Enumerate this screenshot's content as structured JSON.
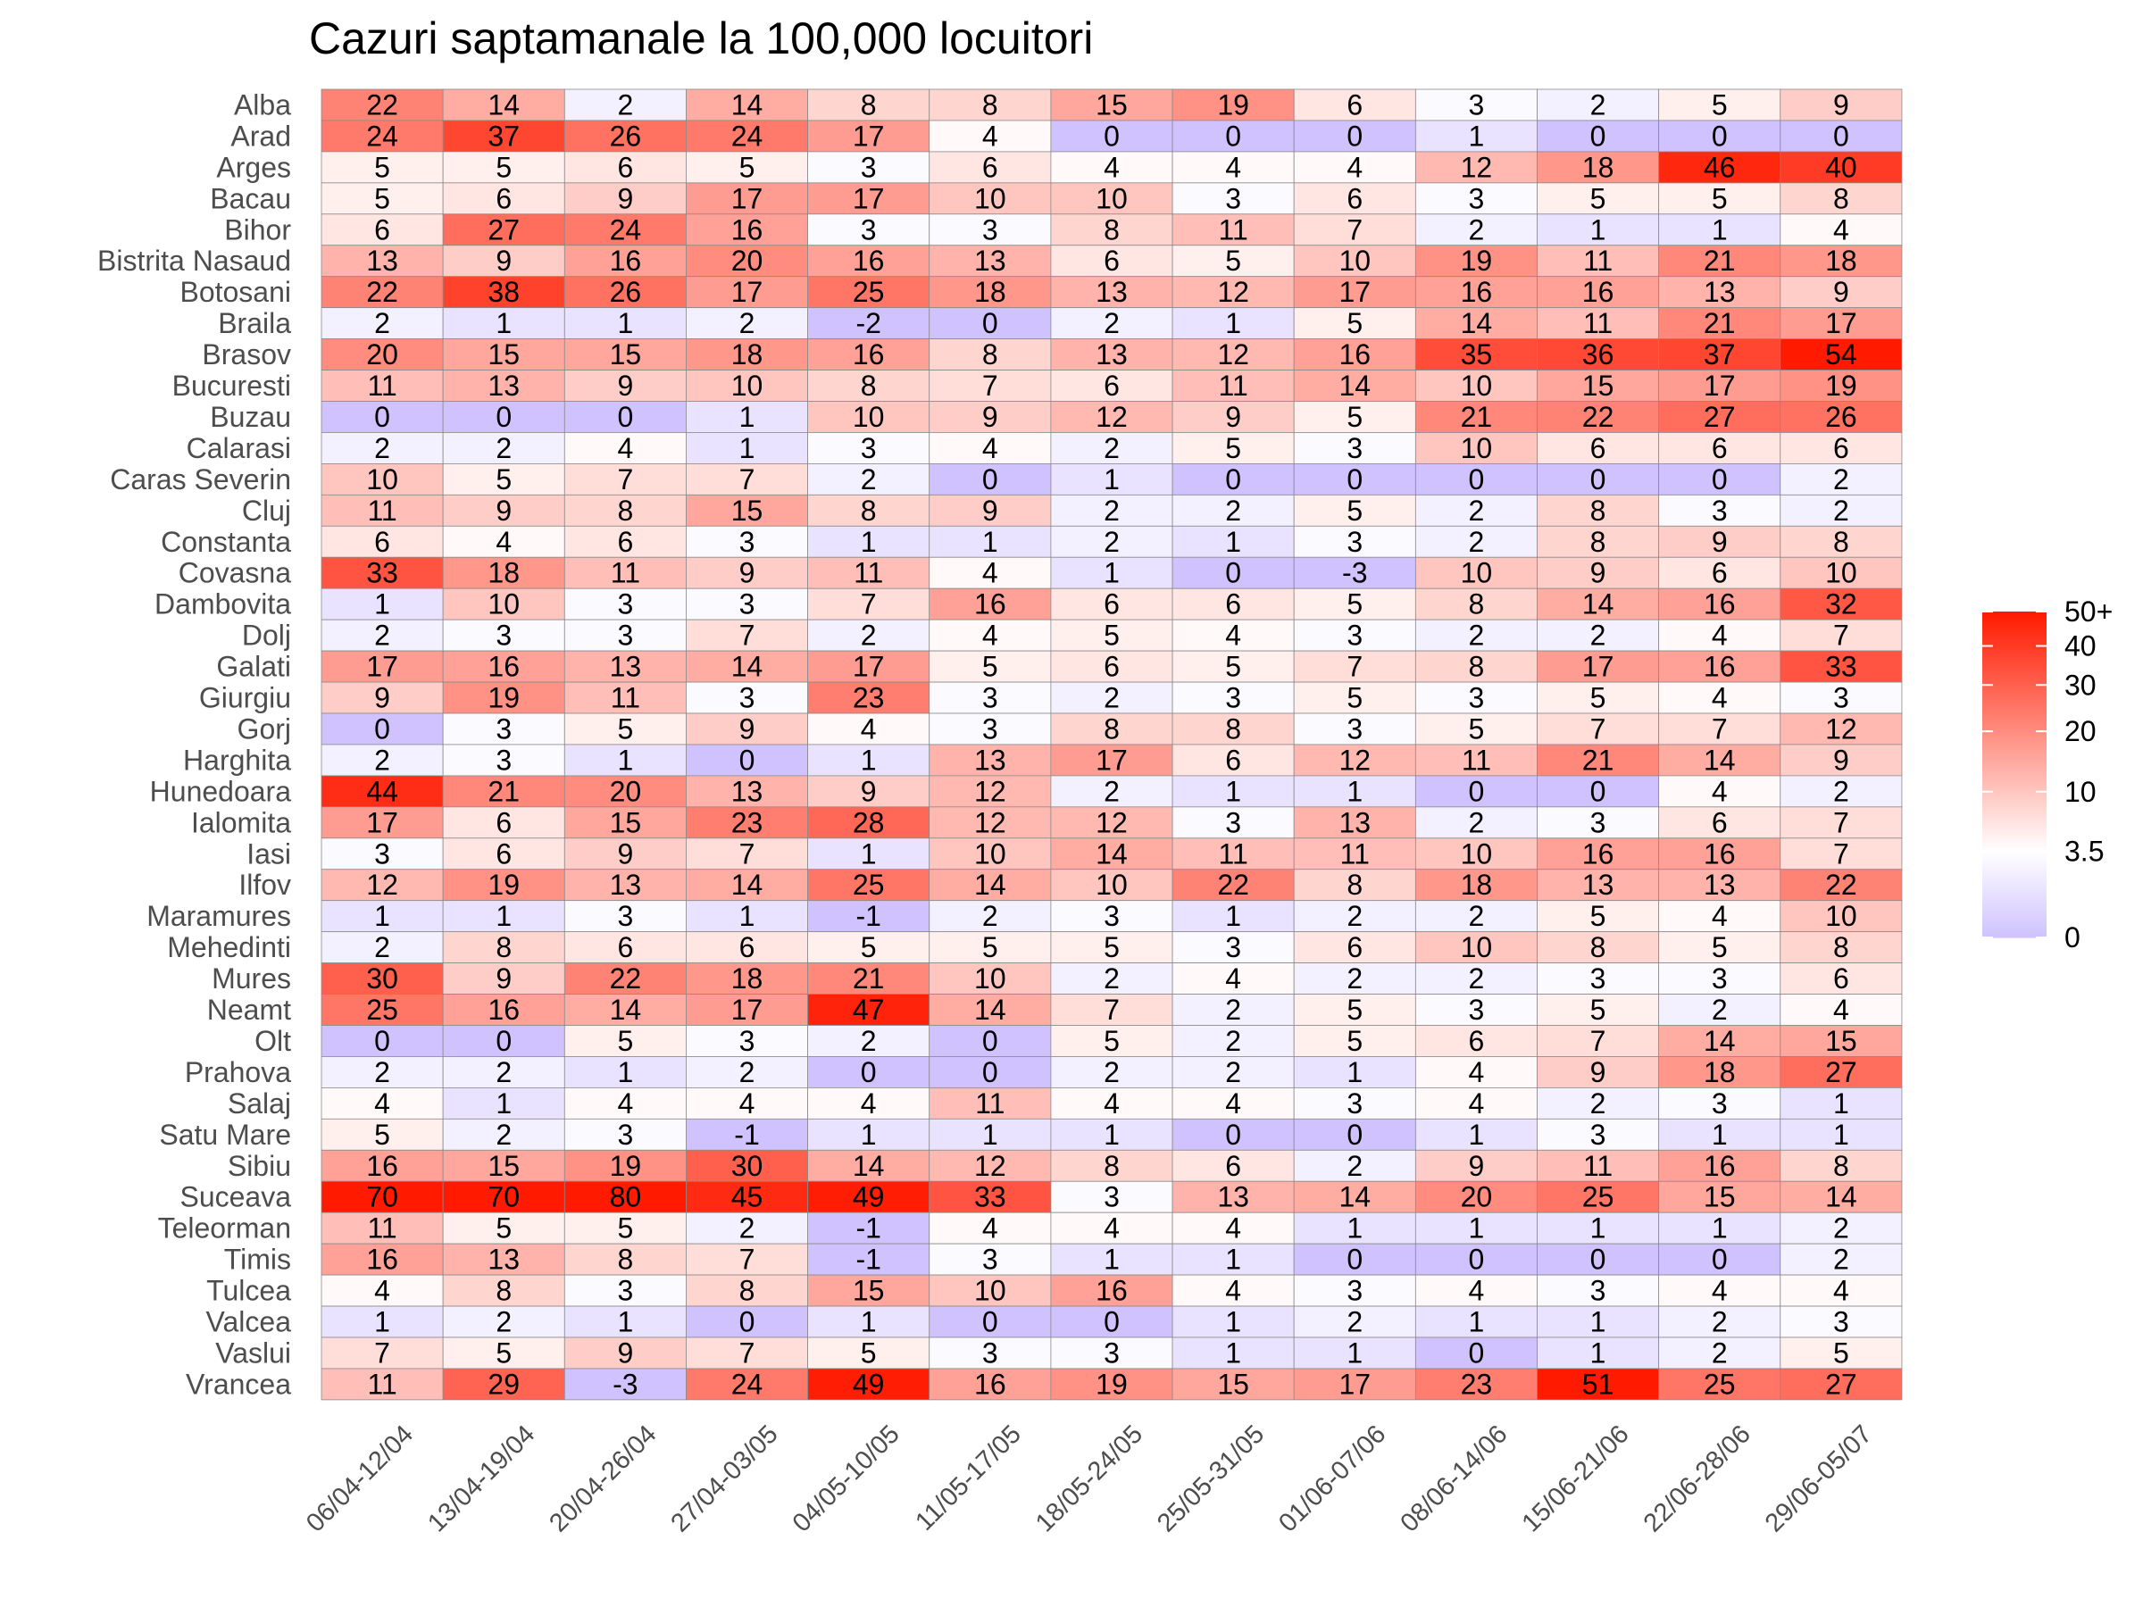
{
  "chart_data": {
    "type": "heatmap",
    "title": "Cazuri saptamanale la 100,000 locuitori",
    "xlabel": "",
    "ylabel": "",
    "x": [
      "06/04-12/04",
      "13/04-19/04",
      "20/04-26/04",
      "27/04-03/05",
      "04/05-10/05",
      "11/05-17/05",
      "18/05-24/05",
      "25/05-31/05",
      "01/06-07/06",
      "08/06-14/06",
      "15/06-21/06",
      "22/06-28/06",
      "29/06-05/07"
    ],
    "y": [
      "Alba",
      "Arad",
      "Arges",
      "Bacau",
      "Bihor",
      "Bistrita Nasaud",
      "Botosani",
      "Braila",
      "Brasov",
      "Bucuresti",
      "Buzau",
      "Calarasi",
      "Caras Severin",
      "Cluj",
      "Constanta",
      "Covasna",
      "Dambovita",
      "Dolj",
      "Galati",
      "Giurgiu",
      "Gorj",
      "Harghita",
      "Hunedoara",
      "Ialomita",
      "Iasi",
      "Ilfov",
      "Maramures",
      "Mehedinti",
      "Mures",
      "Neamt",
      "Olt",
      "Prahova",
      "Salaj",
      "Satu Mare",
      "Sibiu",
      "Suceava",
      "Teleorman",
      "Timis",
      "Tulcea",
      "Valcea",
      "Vaslui",
      "Vrancea"
    ],
    "values": [
      [
        22,
        14,
        2,
        14,
        8,
        8,
        15,
        19,
        6,
        3,
        2,
        5,
        9
      ],
      [
        24,
        37,
        26,
        24,
        17,
        4,
        0,
        0,
        0,
        1,
        0,
        0,
        0
      ],
      [
        5,
        5,
        6,
        5,
        3,
        6,
        4,
        4,
        4,
        12,
        18,
        46,
        40
      ],
      [
        5,
        6,
        9,
        17,
        17,
        10,
        10,
        3,
        6,
        3,
        5,
        5,
        8
      ],
      [
        6,
        27,
        24,
        16,
        3,
        3,
        8,
        11,
        7,
        2,
        1,
        1,
        4
      ],
      [
        13,
        9,
        16,
        20,
        16,
        13,
        6,
        5,
        10,
        19,
        11,
        21,
        18
      ],
      [
        22,
        38,
        26,
        17,
        25,
        18,
        13,
        12,
        17,
        16,
        16,
        13,
        9
      ],
      [
        2,
        1,
        1,
        2,
        -2,
        0,
        2,
        1,
        5,
        14,
        11,
        21,
        17
      ],
      [
        20,
        15,
        15,
        18,
        16,
        8,
        13,
        12,
        16,
        35,
        36,
        37,
        54
      ],
      [
        11,
        13,
        9,
        10,
        8,
        7,
        6,
        11,
        14,
        10,
        15,
        17,
        19
      ],
      [
        0,
        0,
        0,
        1,
        10,
        9,
        12,
        9,
        5,
        21,
        22,
        27,
        26
      ],
      [
        2,
        2,
        4,
        1,
        3,
        4,
        2,
        5,
        3,
        10,
        6,
        6,
        6
      ],
      [
        10,
        5,
        7,
        7,
        2,
        0,
        1,
        0,
        0,
        0,
        0,
        0,
        2
      ],
      [
        11,
        9,
        8,
        15,
        8,
        9,
        2,
        2,
        5,
        2,
        8,
        3,
        2
      ],
      [
        6,
        4,
        6,
        3,
        1,
        1,
        2,
        1,
        3,
        2,
        8,
        9,
        8
      ],
      [
        33,
        18,
        11,
        9,
        11,
        4,
        1,
        0,
        -3,
        10,
        9,
        6,
        10
      ],
      [
        1,
        10,
        3,
        3,
        7,
        16,
        6,
        6,
        5,
        8,
        14,
        16,
        32
      ],
      [
        2,
        3,
        3,
        7,
        2,
        4,
        5,
        4,
        3,
        2,
        2,
        4,
        7
      ],
      [
        17,
        16,
        13,
        14,
        17,
        5,
        6,
        5,
        7,
        8,
        17,
        16,
        33
      ],
      [
        9,
        19,
        11,
        3,
        23,
        3,
        2,
        3,
        5,
        3,
        5,
        4,
        3
      ],
      [
        0,
        3,
        5,
        9,
        4,
        3,
        8,
        8,
        3,
        5,
        7,
        7,
        12
      ],
      [
        2,
        3,
        1,
        0,
        1,
        13,
        17,
        6,
        12,
        11,
        21,
        14,
        9
      ],
      [
        44,
        21,
        20,
        13,
        9,
        12,
        2,
        1,
        1,
        0,
        0,
        4,
        2
      ],
      [
        17,
        6,
        15,
        23,
        28,
        12,
        12,
        3,
        13,
        2,
        3,
        6,
        7
      ],
      [
        3,
        6,
        9,
        7,
        1,
        10,
        14,
        11,
        11,
        10,
        16,
        16,
        7
      ],
      [
        12,
        19,
        13,
        14,
        25,
        14,
        10,
        22,
        8,
        18,
        13,
        13,
        22
      ],
      [
        1,
        1,
        3,
        1,
        -1,
        2,
        3,
        1,
        2,
        2,
        5,
        4,
        10
      ],
      [
        2,
        8,
        6,
        6,
        5,
        5,
        5,
        3,
        6,
        10,
        8,
        5,
        8
      ],
      [
        30,
        9,
        22,
        18,
        21,
        10,
        2,
        4,
        2,
        2,
        3,
        3,
        6
      ],
      [
        25,
        16,
        14,
        17,
        47,
        14,
        7,
        2,
        5,
        3,
        5,
        2,
        4
      ],
      [
        0,
        0,
        5,
        3,
        2,
        0,
        5,
        2,
        5,
        6,
        7,
        14,
        15
      ],
      [
        2,
        2,
        1,
        2,
        0,
        0,
        2,
        2,
        1,
        4,
        9,
        18,
        27
      ],
      [
        4,
        1,
        4,
        4,
        4,
        11,
        4,
        4,
        3,
        4,
        2,
        3,
        1
      ],
      [
        5,
        2,
        3,
        -1,
        1,
        1,
        1,
        0,
        0,
        1,
        3,
        1,
        1
      ],
      [
        16,
        15,
        19,
        30,
        14,
        12,
        8,
        6,
        2,
        9,
        11,
        16,
        8
      ],
      [
        70,
        70,
        80,
        45,
        49,
        33,
        3,
        13,
        14,
        20,
        25,
        15,
        14
      ],
      [
        11,
        5,
        5,
        2,
        -1,
        4,
        4,
        4,
        1,
        1,
        1,
        1,
        2
      ],
      [
        16,
        13,
        8,
        7,
        -1,
        3,
        1,
        1,
        0,
        0,
        0,
        0,
        2
      ],
      [
        4,
        8,
        3,
        8,
        15,
        10,
        16,
        4,
        3,
        4,
        3,
        4,
        4
      ],
      [
        1,
        2,
        1,
        0,
        1,
        0,
        0,
        1,
        2,
        1,
        1,
        2,
        3
      ],
      [
        7,
        5,
        9,
        7,
        5,
        3,
        3,
        1,
        1,
        0,
        1,
        2,
        5
      ],
      [
        11,
        29,
        -3,
        24,
        49,
        16,
        19,
        15,
        17,
        23,
        51,
        25,
        27
      ]
    ],
    "colorscale": {
      "low": "#cfc2ff",
      "mid": "#ffffff",
      "high": "#ff1a00",
      "mid_value": 3.5,
      "min_value": 0,
      "max_value": 50,
      "transform": "sqrt"
    },
    "legend": {
      "position": "right",
      "ticks": [
        "50+",
        "40",
        "30",
        "20",
        "10",
        "3.5",
        "0"
      ],
      "tick_values": [
        50,
        40,
        30,
        20,
        10,
        3.5,
        0
      ]
    },
    "grid": false
  }
}
